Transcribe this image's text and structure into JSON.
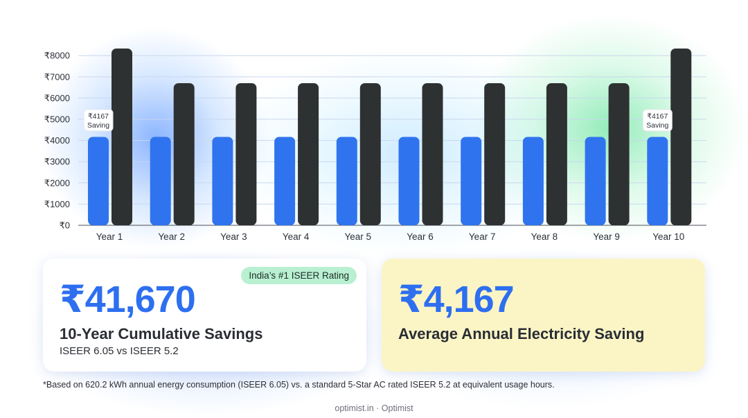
{
  "chart_data": {
    "type": "bar",
    "categories": [
      "Year 1",
      "Year 2",
      "Year 3",
      "Year 4",
      "Year 5",
      "Year 6",
      "Year 7",
      "Year 8",
      "Year 9",
      "Year 10"
    ],
    "series": [
      {
        "values": [
          4167,
          4167,
          4167,
          4167,
          4167,
          4167,
          4167,
          4167,
          4167,
          4167
        ]
      },
      {
        "values": [
          8334,
          6700,
          6700,
          6700,
          6700,
          6700,
          6700,
          6700,
          6700,
          8334
        ]
      }
    ],
    "ylim": [
      0,
      8334
    ],
    "yticks": [
      0,
      1000,
      2000,
      3000,
      4000,
      5000,
      6000,
      7000,
      8000
    ],
    "ytick_labels": [
      "₹0",
      "₹1000",
      "₹2000",
      "₹3000",
      "₹4000",
      "₹5000",
      "₹6000",
      "₹7000",
      "₹8000"
    ],
    "annotations": [
      {
        "category": "Year 1",
        "line1": "₹4167",
        "line2": "Saving"
      },
      {
        "category": "Year 10",
        "line1": "₹4167",
        "line2": "Saving"
      }
    ],
    "grid": true,
    "colors": {
      "savings": "#2f74ee",
      "comparison": "#2e3131"
    }
  },
  "cards": {
    "left": {
      "badge": "India’s #1 ISEER Rating",
      "value": "₹41,670",
      "title": "10-Year Cumulative Savings",
      "subtitle": "ISEER 6.05 vs ISEER 5.2"
    },
    "right": {
      "value": "₹4,167",
      "title": "Average Annual Electricity Saving"
    }
  },
  "footnote": "*Based on 620.2 kWh annual energy consumption (ISEER 6.05) vs. a standard 5-Star AC rated ISEER 5.2 at equivalent usage hours.",
  "footer": "optimist.in · Optimist",
  "colors": {
    "accent": "#2e6ff0",
    "badge_bg": "#b9f0d2",
    "highlight_card": "#fbf5c6"
  }
}
